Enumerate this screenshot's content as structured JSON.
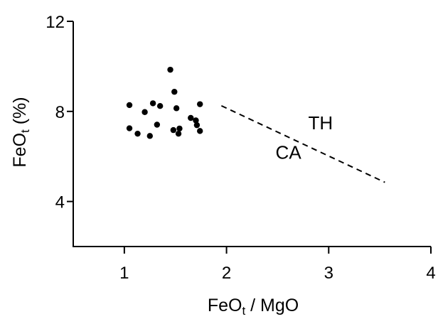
{
  "chart_data": {
    "type": "scatter",
    "title": "",
    "xlabel": {
      "base": "FeO",
      "sub": "t",
      "rest": " / MgO"
    },
    "ylabel": {
      "base": "FeO",
      "sub": "t",
      "rest": " (%)"
    },
    "xlim": [
      0.5,
      4.0
    ],
    "ylim": [
      2,
      12
    ],
    "xticks": [
      1,
      2,
      3,
      4
    ],
    "yticks": [
      4,
      8,
      12
    ],
    "xtick_labels": [
      "1",
      "2",
      "3",
      "4"
    ],
    "ytick_labels": [
      "4",
      "8",
      "12"
    ],
    "grid": false,
    "series": [
      {
        "points": [
          {
            "x": 1.05,
            "y": 8.28
          },
          {
            "x": 1.05,
            "y": 7.25
          },
          {
            "x": 1.13,
            "y": 7.01
          },
          {
            "x": 1.2,
            "y": 7.97
          },
          {
            "x": 1.25,
            "y": 6.91
          },
          {
            "x": 1.28,
            "y": 8.36
          },
          {
            "x": 1.32,
            "y": 7.41
          },
          {
            "x": 1.35,
            "y": 8.24
          },
          {
            "x": 1.45,
            "y": 9.85
          },
          {
            "x": 1.48,
            "y": 7.17
          },
          {
            "x": 1.49,
            "y": 8.87
          },
          {
            "x": 1.51,
            "y": 8.14
          },
          {
            "x": 1.53,
            "y": 7.01
          },
          {
            "x": 1.54,
            "y": 7.24
          },
          {
            "x": 1.65,
            "y": 7.71
          },
          {
            "x": 1.7,
            "y": 7.6
          },
          {
            "x": 1.71,
            "y": 7.39
          },
          {
            "x": 1.74,
            "y": 7.13
          },
          {
            "x": 1.74,
            "y": 8.32
          }
        ]
      }
    ],
    "divider_line": {
      "x": [
        1.95,
        3.55
      ],
      "y": [
        8.25,
        4.85
      ],
      "style": "dashed"
    },
    "annotations": [
      {
        "text": "TH",
        "x": 2.8,
        "y": 7.2
      },
      {
        "text": "CA",
        "x": 2.48,
        "y": 5.9
      }
    ],
    "colors": {
      "ink": "#000000",
      "background": "#ffffff"
    }
  }
}
